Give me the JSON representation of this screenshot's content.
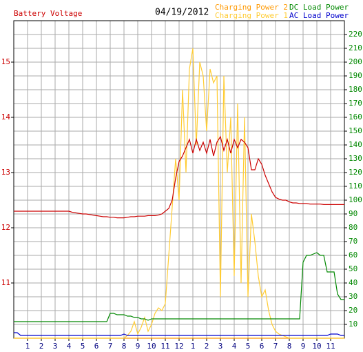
{
  "chart_data": {
    "type": "line",
    "title": "Battery Voltage",
    "subtitle": "04/19/2012",
    "x": [
      0,
      0.25,
      0.5,
      0.75,
      1,
      1.25,
      1.5,
      1.75,
      2,
      2.25,
      2.5,
      2.75,
      3,
      3.25,
      3.5,
      3.75,
      4,
      4.25,
      4.5,
      4.75,
      5,
      5.25,
      5.5,
      5.75,
      6,
      6.25,
      6.5,
      6.75,
      7,
      7.25,
      7.5,
      7.75,
      8,
      8.25,
      8.5,
      8.75,
      9,
      9.25,
      9.5,
      9.75,
      10,
      10.25,
      10.5,
      10.75,
      11,
      11.25,
      11.5,
      11.75,
      12,
      12.25,
      12.5,
      12.75,
      13,
      13.25,
      13.5,
      13.75,
      14,
      14.25,
      14.5,
      14.75,
      15,
      15.25,
      15.5,
      15.75,
      16,
      16.25,
      16.5,
      16.75,
      17,
      17.25,
      17.5,
      17.75,
      18,
      18.25,
      18.5,
      18.75,
      19,
      19.25,
      19.5,
      19.75,
      20,
      20.25,
      20.5,
      20.75,
      21,
      21.25,
      21.5,
      21.75,
      22,
      22.25,
      22.5,
      22.75,
      23,
      23.25,
      23.5,
      23.75,
      24
    ],
    "xlim": [
      0,
      24
    ],
    "xticks": [
      1,
      2,
      3,
      4,
      5,
      6,
      7,
      8,
      9,
      10,
      11,
      12,
      {
        "value": 13,
        "label": "1"
      },
      {
        "value": 14,
        "label": "2"
      },
      {
        "value": 15,
        "label": "3"
      },
      {
        "value": 16,
        "label": "4"
      },
      {
        "value": 17,
        "label": "5"
      },
      {
        "value": 18,
        "label": "6"
      },
      {
        "value": 19,
        "label": "7"
      },
      {
        "value": 20,
        "label": "8"
      },
      {
        "value": 21,
        "label": "9"
      },
      {
        "value": 22,
        "label": "10"
      },
      {
        "value": 23,
        "label": "11"
      }
    ],
    "ylim": [
      10,
      15.75
    ],
    "yticks": [
      11,
      12,
      13,
      14,
      15
    ],
    "y2lim": [
      0,
      230
    ],
    "y2ticks": [
      10,
      20,
      30,
      40,
      50,
      60,
      70,
      80,
      90,
      100,
      110,
      120,
      130,
      140,
      150,
      160,
      170,
      180,
      190,
      200,
      210,
      220
    ],
    "grid": true,
    "series": [
      {
        "name": "Battery Voltage",
        "color": "#cc0000",
        "values": [
          12.3,
          12.3,
          12.3,
          12.3,
          12.3,
          12.3,
          12.3,
          12.3,
          12.3,
          12.3,
          12.3,
          12.3,
          12.3,
          12.3,
          12.3,
          12.3,
          12.3,
          12.28,
          12.27,
          12.26,
          12.25,
          12.25,
          12.24,
          12.23,
          12.22,
          12.21,
          12.2,
          12.2,
          12.19,
          12.19,
          12.18,
          12.18,
          12.18,
          12.19,
          12.2,
          12.2,
          12.21,
          12.21,
          12.21,
          12.22,
          12.22,
          12.22,
          12.23,
          12.25,
          12.3,
          12.35,
          12.5,
          12.9,
          13.2,
          13.3,
          13.45,
          13.6,
          13.35,
          13.6,
          13.4,
          13.55,
          13.35,
          13.6,
          13.3,
          13.55,
          13.65,
          13.4,
          13.6,
          13.35,
          13.6,
          13.45,
          13.6,
          13.55,
          13.45,
          13.05,
          13.05,
          13.25,
          13.15,
          12.95,
          12.8,
          12.65,
          12.55,
          12.52,
          12.5,
          12.5,
          12.47,
          12.45,
          12.45,
          12.44,
          12.44,
          12.44,
          12.43,
          12.43,
          12.43,
          12.43,
          12.42,
          12.42,
          12.42,
          12.42,
          12.42,
          12.42,
          12.42
        ]
      },
      {
        "name": "Charging Power 1",
        "color": "#ffcc33",
        "axis": "y2",
        "values": [
          0,
          0,
          0,
          0,
          0,
          0,
          0,
          0,
          0,
          0,
          0,
          0,
          0,
          0,
          0,
          0,
          0,
          0,
          0,
          0,
          0,
          0,
          0,
          0,
          0,
          0,
          0,
          0,
          0,
          0,
          0,
          0,
          0,
          2,
          5,
          12,
          3,
          8,
          15,
          5,
          10,
          18,
          22,
          20,
          25,
          60,
          95,
          130,
          100,
          180,
          120,
          195,
          210,
          140,
          200,
          190,
          150,
          195,
          185,
          190,
          30,
          190,
          120,
          160,
          45,
          170,
          40,
          160,
          30,
          90,
          70,
          45,
          30,
          35,
          20,
          10,
          5,
          3,
          2,
          1,
          0,
          0,
          0,
          0,
          0,
          0,
          0,
          0,
          0,
          0,
          0,
          0,
          0,
          0,
          0,
          0,
          0
        ]
      },
      {
        "name": "Charging Power 2",
        "color": "#ff9900",
        "axis": "y2",
        "values": [
          0,
          0,
          0,
          0,
          0,
          0,
          0,
          0,
          0,
          0,
          0,
          0,
          0,
          0,
          0,
          0,
          0,
          0,
          0,
          0,
          0,
          0,
          0,
          0,
          0,
          0,
          0,
          0,
          0,
          0,
          0,
          0,
          0,
          0,
          0,
          0,
          0,
          0,
          0,
          0,
          0,
          0,
          0,
          0,
          0,
          0,
          0,
          0,
          0,
          0,
          0,
          0,
          0,
          0,
          0,
          0,
          0,
          0,
          0,
          0,
          0,
          0,
          0,
          0,
          0,
          0,
          0,
          0,
          0,
          0,
          0,
          0,
          0,
          0,
          0,
          0,
          0,
          0,
          0,
          0,
          0,
          0,
          0,
          0,
          0,
          0,
          0,
          0,
          0,
          0,
          0,
          0,
          0,
          0,
          0,
          0,
          0
        ]
      },
      {
        "name": "AC Load Power",
        "color": "#0000cc",
        "axis": "y2",
        "values": [
          4,
          4,
          2,
          2,
          2,
          2,
          2,
          2,
          2,
          2,
          2,
          2,
          2,
          2,
          2,
          2,
          2,
          2,
          2,
          2,
          2,
          2,
          2,
          2,
          2,
          2,
          2,
          2,
          2,
          2,
          2,
          2,
          3,
          2,
          2,
          2,
          2,
          2,
          2,
          2,
          2,
          2,
          2,
          2,
          2,
          2,
          2,
          2,
          2,
          2,
          2,
          2,
          2,
          2,
          2,
          2,
          2,
          2,
          2,
          2,
          2,
          2,
          2,
          2,
          2,
          2,
          2,
          2,
          2,
          2,
          2,
          2,
          2,
          2,
          2,
          2,
          2,
          2,
          2,
          2,
          2,
          2,
          2,
          2,
          2,
          2,
          2,
          2,
          2,
          2,
          2,
          2,
          3,
          3,
          3,
          2,
          2
        ]
      },
      {
        "name": "DC Load Power",
        "color": "#008800",
        "axis": "y2",
        "values": [
          12,
          12,
          12,
          12,
          12,
          12,
          12,
          12,
          12,
          12,
          12,
          12,
          12,
          12,
          12,
          12,
          12,
          12,
          12,
          12,
          12,
          12,
          12,
          12,
          12,
          12,
          12,
          12,
          18,
          18,
          17,
          17,
          17,
          16,
          16,
          15,
          15,
          14,
          14,
          13,
          14,
          14,
          14,
          14,
          14,
          14,
          14,
          14,
          14,
          14,
          14,
          14,
          14,
          14,
          14,
          14,
          14,
          14,
          14,
          14,
          14,
          14,
          14,
          14,
          14,
          14,
          14,
          14,
          14,
          14,
          14,
          14,
          14,
          14,
          14,
          14,
          14,
          14,
          14,
          14,
          14,
          14,
          14,
          14,
          55,
          60,
          60,
          61,
          62,
          60,
          60,
          48,
          48,
          48,
          32,
          28,
          28
        ]
      }
    ]
  }
}
